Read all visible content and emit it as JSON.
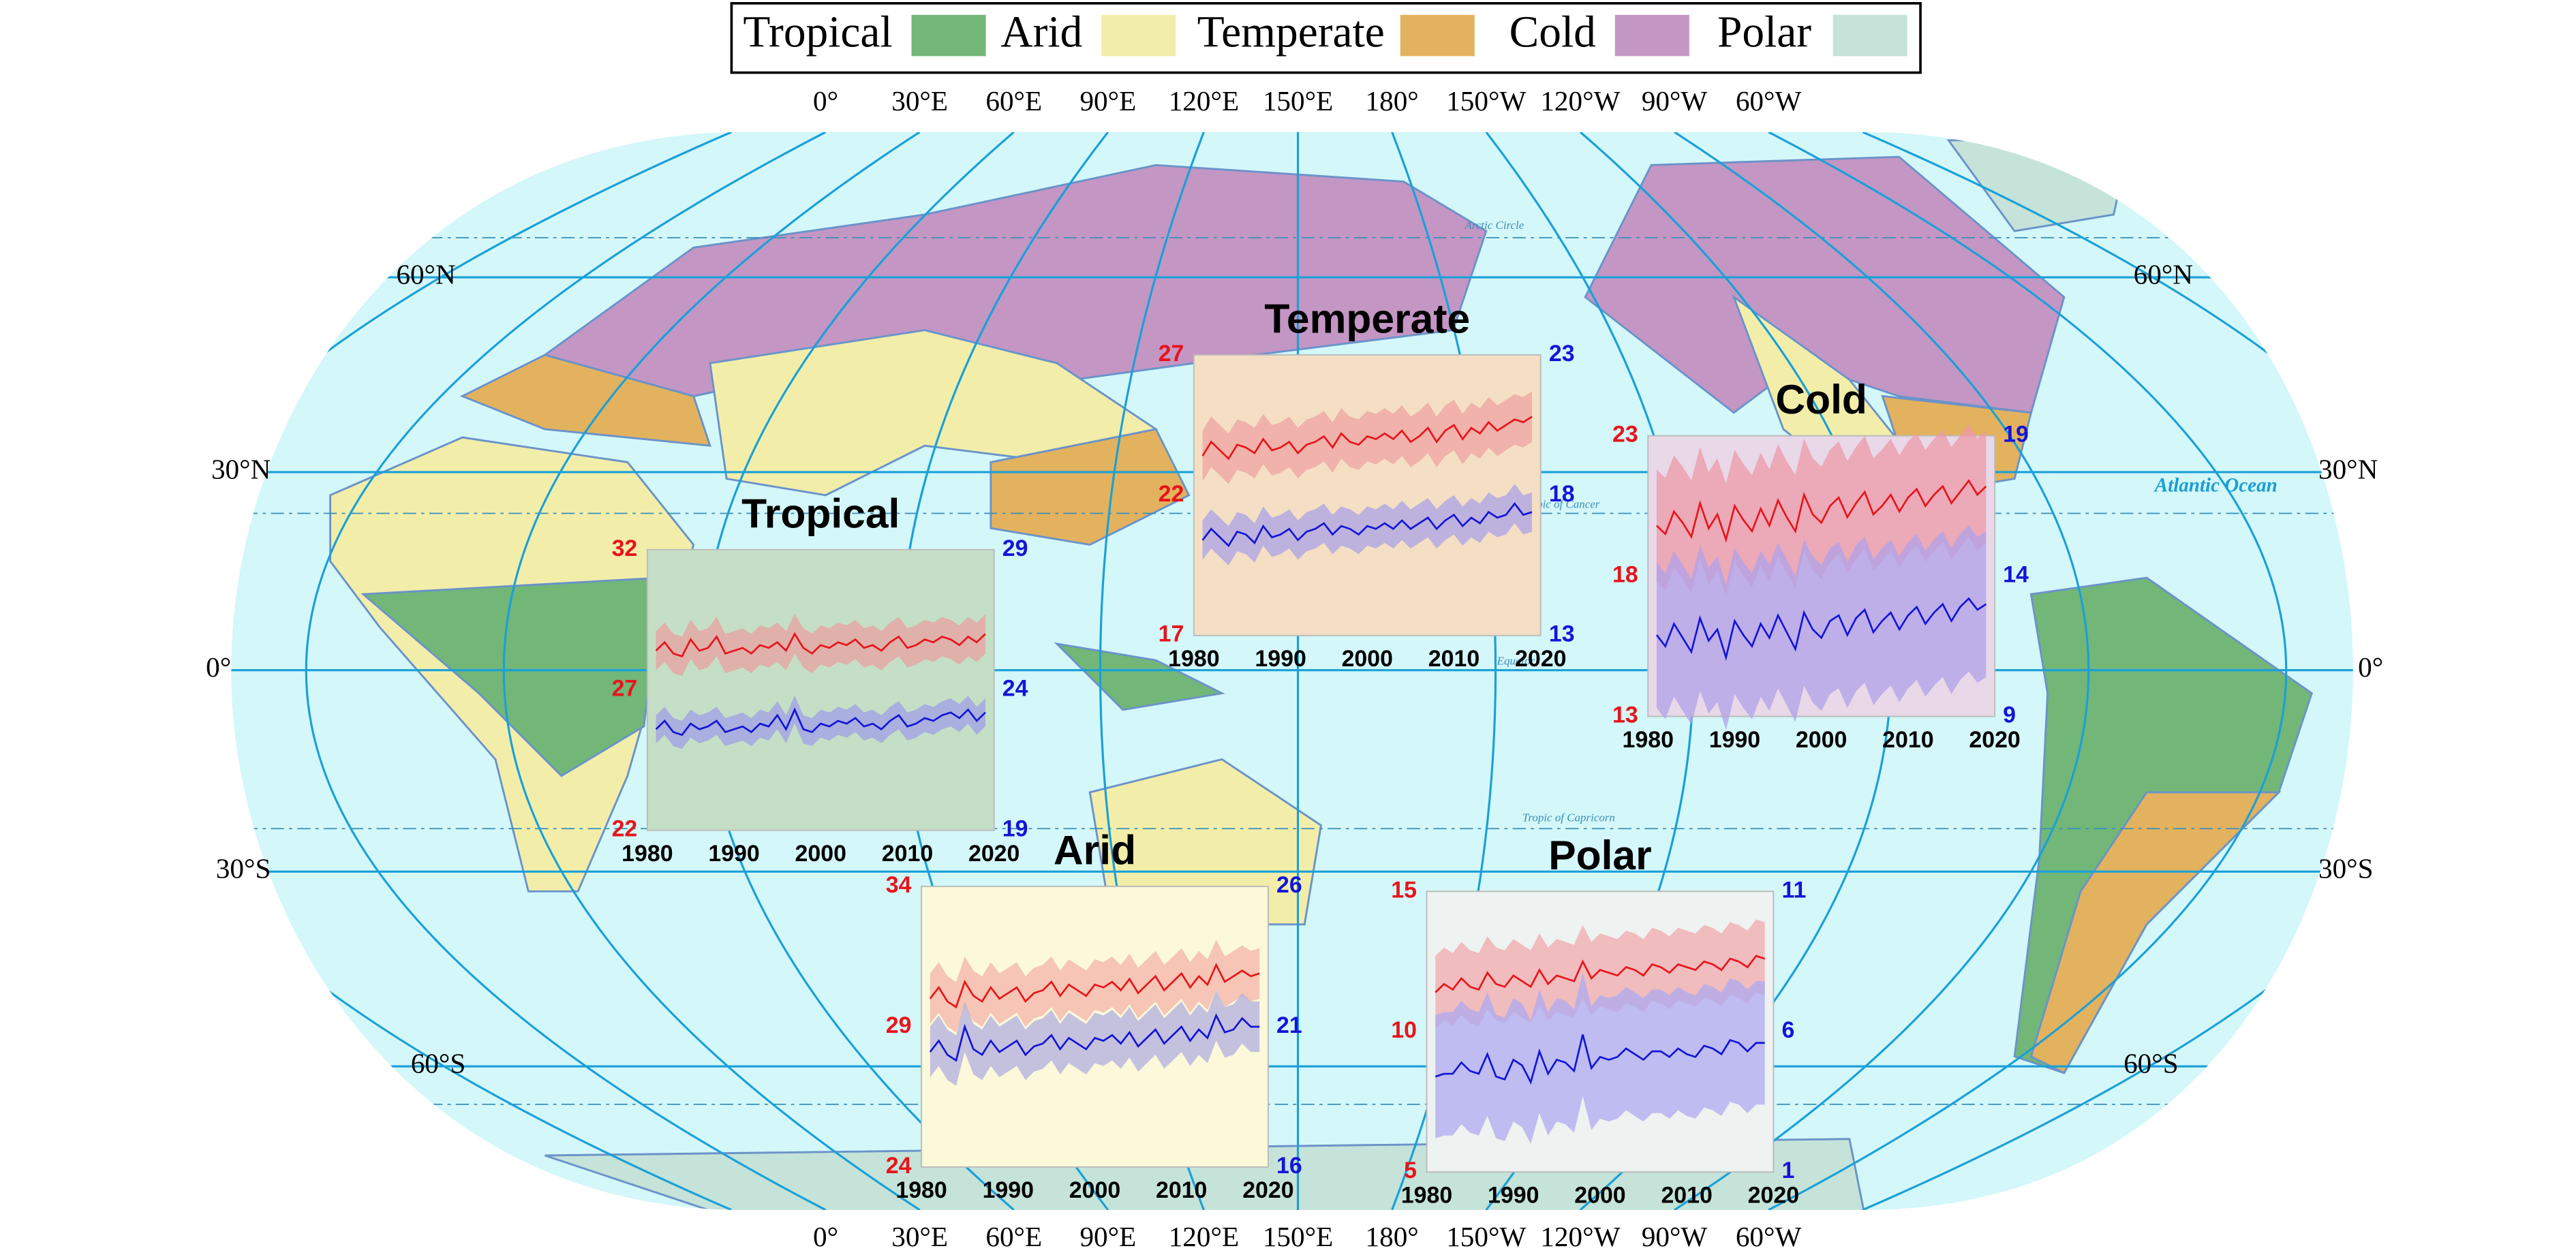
{
  "legend": [
    {
      "label": "Tropical",
      "color": "#72b777"
    },
    {
      "label": "Arid",
      "color": "#f2eeaa"
    },
    {
      "label": "Temperate",
      "color": "#e3b25e"
    },
    {
      "label": "Cold",
      "color": "#c496c4"
    },
    {
      "label": "Polar",
      "color": "#c5e3d9"
    }
  ],
  "map": {
    "lon_labels": [
      "0°",
      "30°E",
      "60°E",
      "90°E",
      "120°E",
      "150°E",
      "180°",
      "150°W",
      "120°W",
      "90°W",
      "60°W"
    ],
    "lat_labels": [
      "60°N",
      "30°N",
      "0°",
      "30°S",
      "60°S"
    ],
    "annotations": [
      "Atlantic Ocean",
      "Arctic Circle",
      "Tropic of Cancer",
      "Equator",
      "Tropic of Capricorn"
    ]
  },
  "chart_data": [
    {
      "type": "line",
      "title": "Tropical",
      "background": "#c5dfc6",
      "x": [
        1981,
        1982,
        1983,
        1984,
        1985,
        1986,
        1987,
        1988,
        1989,
        1990,
        1991,
        1992,
        1993,
        1994,
        1995,
        1996,
        1997,
        1998,
        1999,
        2000,
        2001,
        2002,
        2003,
        2004,
        2005,
        2006,
        2007,
        2008,
        2009,
        2010,
        2011,
        2012,
        2013,
        2014,
        2015,
        2016,
        2017,
        2018,
        2019
      ],
      "xlim": [
        1980,
        2020
      ],
      "xticks": [
        1980,
        1990,
        2000,
        2010,
        2020
      ],
      "ylim": [
        22,
        32
      ],
      "yticks": [
        22,
        27,
        32
      ],
      "y2lim": [
        19,
        29
      ],
      "y2ticks": [
        19,
        24,
        29
      ],
      "series": [
        {
          "color": "#e8141b",
          "band_color": "#e8a0a0",
          "band": 0.7,
          "values": [
            28.4,
            28.7,
            28.3,
            28.2,
            28.8,
            28.4,
            28.5,
            28.9,
            28.3,
            28.4,
            28.5,
            28.3,
            28.6,
            28.5,
            28.7,
            28.4,
            29.0,
            28.5,
            28.3,
            28.6,
            28.5,
            28.7,
            28.6,
            28.8,
            28.5,
            28.6,
            28.4,
            28.7,
            28.9,
            28.5,
            28.6,
            28.8,
            28.7,
            28.9,
            28.8,
            28.6,
            28.9,
            28.7,
            29.0
          ]
        },
        {
          "color": "#1414d8",
          "band_color": "#9f9fe6",
          "band": 0.5,
          "axis": "y2",
          "values": [
            22.6,
            22.9,
            22.5,
            22.4,
            22.8,
            22.6,
            22.7,
            22.9,
            22.5,
            22.6,
            22.7,
            22.5,
            22.8,
            22.7,
            23.1,
            22.6,
            23.3,
            22.6,
            22.5,
            22.8,
            22.7,
            22.9,
            22.8,
            23.0,
            22.7,
            22.8,
            22.6,
            22.9,
            23.1,
            22.7,
            22.8,
            23.0,
            22.9,
            23.1,
            23.2,
            23.0,
            23.3,
            22.9,
            23.2
          ]
        }
      ]
    },
    {
      "type": "line",
      "title": "Temperate",
      "background": "#f5dfc4",
      "x": [
        1981,
        1982,
        1983,
        1984,
        1985,
        1986,
        1987,
        1988,
        1989,
        1990,
        1991,
        1992,
        1993,
        1994,
        1995,
        1996,
        1997,
        1998,
        1999,
        2000,
        2001,
        2002,
        2003,
        2004,
        2005,
        2006,
        2007,
        2008,
        2009,
        2010,
        2011,
        2012,
        2013,
        2014,
        2015,
        2016,
        2017,
        2018,
        2019
      ],
      "xlim": [
        1980,
        2020
      ],
      "xticks": [
        1980,
        1990,
        2000,
        2010,
        2020
      ],
      "ylim": [
        17,
        27
      ],
      "yticks": [
        17,
        22,
        27
      ],
      "y2lim": [
        13,
        23
      ],
      "y2ticks": [
        13,
        18,
        23
      ],
      "series": [
        {
          "color": "#e8141b",
          "band_color": "#eda3a3",
          "band": 0.9,
          "values": [
            23.4,
            23.9,
            23.6,
            23.3,
            23.8,
            23.7,
            23.5,
            24.0,
            23.6,
            23.7,
            23.9,
            23.5,
            23.8,
            23.9,
            24.1,
            23.7,
            24.2,
            23.9,
            23.8,
            24.1,
            24.0,
            24.2,
            24.0,
            24.3,
            23.9,
            24.1,
            24.4,
            23.9,
            24.3,
            24.5,
            24.0,
            24.4,
            24.2,
            24.6,
            24.3,
            24.5,
            24.7,
            24.6,
            24.8
          ]
        },
        {
          "color": "#1414d8",
          "band_color": "#a9a3e6",
          "band": 0.7,
          "axis": "y2",
          "values": [
            16.4,
            16.8,
            16.5,
            16.2,
            16.7,
            16.6,
            16.3,
            16.9,
            16.5,
            16.6,
            16.8,
            16.4,
            16.7,
            16.8,
            17.0,
            16.6,
            16.9,
            16.8,
            16.6,
            16.9,
            16.8,
            17.0,
            16.8,
            17.1,
            16.8,
            17.0,
            17.2,
            16.8,
            17.1,
            17.3,
            16.9,
            17.2,
            17.0,
            17.4,
            17.2,
            17.3,
            17.7,
            17.3,
            17.4
          ]
        }
      ]
    },
    {
      "type": "line",
      "title": "Cold",
      "background": "#e8d8e8",
      "x": [
        1981,
        1982,
        1983,
        1984,
        1985,
        1986,
        1987,
        1988,
        1989,
        1990,
        1991,
        1992,
        1993,
        1994,
        1995,
        1996,
        1997,
        1998,
        1999,
        2000,
        2001,
        2002,
        2003,
        2004,
        2005,
        2006,
        2007,
        2008,
        2009,
        2010,
        2011,
        2012,
        2013,
        2014,
        2015,
        2016,
        2017,
        2018,
        2019
      ],
      "xlim": [
        1980,
        2020
      ],
      "xticks": [
        1980,
        1990,
        2000,
        2010,
        2020
      ],
      "ylim": [
        13,
        23
      ],
      "yticks": [
        13,
        18,
        23
      ],
      "y2lim": [
        9,
        19
      ],
      "y2ticks": [
        9,
        14,
        19
      ],
      "series": [
        {
          "color": "#e8141b",
          "band_color": "#ee9aa8",
          "band": 2.0,
          "values": [
            19.8,
            19.5,
            20.3,
            19.9,
            19.4,
            20.6,
            19.7,
            20.2,
            19.3,
            20.5,
            20.0,
            19.6,
            20.4,
            19.8,
            20.7,
            20.1,
            19.6,
            20.9,
            20.2,
            19.9,
            20.5,
            20.8,
            20.1,
            20.6,
            21.0,
            20.2,
            20.5,
            20.9,
            20.3,
            20.8,
            21.1,
            20.5,
            20.9,
            21.2,
            20.6,
            21.0,
            21.4,
            20.9,
            21.2
          ]
        },
        {
          "color": "#1414d8",
          "band_color": "#b0a2ea",
          "band": 2.6,
          "axis": "y2",
          "values": [
            11.9,
            11.5,
            12.3,
            11.8,
            11.3,
            12.5,
            11.7,
            12.1,
            11.1,
            12.4,
            11.9,
            11.5,
            12.3,
            11.8,
            12.6,
            12.0,
            11.4,
            12.7,
            12.1,
            11.8,
            12.4,
            12.6,
            11.9,
            12.5,
            12.8,
            12.0,
            12.4,
            12.7,
            12.1,
            12.6,
            12.9,
            12.3,
            12.7,
            13.0,
            12.4,
            12.9,
            13.2,
            12.8,
            13.0
          ]
        }
      ]
    },
    {
      "type": "line",
      "title": "Arid",
      "background": "#fbf9da",
      "x": [
        1981,
        1982,
        1983,
        1984,
        1985,
        1986,
        1987,
        1988,
        1989,
        1990,
        1991,
        1992,
        1993,
        1994,
        1995,
        1996,
        1997,
        1998,
        1999,
        2000,
        2001,
        2002,
        2003,
        2004,
        2005,
        2006,
        2007,
        2008,
        2009,
        2010,
        2011,
        2012,
        2013,
        2014,
        2015,
        2016,
        2017,
        2018,
        2019
      ],
      "xlim": [
        1980,
        2020
      ],
      "xticks": [
        1980,
        1990,
        2000,
        2010,
        2020
      ],
      "ylim": [
        24,
        34
      ],
      "yticks": [
        24,
        29,
        34
      ],
      "y2lim": [
        16,
        26
      ],
      "y2ticks": [
        16,
        21,
        26
      ],
      "series": [
        {
          "color": "#e8141b",
          "band_color": "#f4b3a8",
          "band": 0.9,
          "values": [
            30.0,
            30.4,
            29.9,
            29.7,
            30.6,
            30.1,
            29.9,
            30.4,
            30.0,
            30.2,
            30.4,
            29.9,
            30.2,
            30.3,
            30.6,
            30.1,
            30.5,
            30.3,
            30.1,
            30.5,
            30.4,
            30.6,
            30.3,
            30.7,
            30.2,
            30.5,
            30.8,
            30.3,
            30.6,
            30.9,
            30.4,
            30.8,
            30.5,
            31.2,
            30.6,
            30.8,
            31.0,
            30.8,
            30.9
          ]
        },
        {
          "color": "#1414d8",
          "band_color": "#b2aee0",
          "band": 0.9,
          "axis": "y2",
          "values": [
            20.1,
            20.5,
            20.0,
            19.8,
            21.0,
            20.2,
            20.0,
            20.5,
            20.1,
            20.3,
            20.5,
            20.0,
            20.3,
            20.4,
            20.7,
            20.2,
            20.6,
            20.4,
            20.2,
            20.6,
            20.5,
            20.7,
            20.4,
            20.8,
            20.3,
            20.6,
            20.9,
            20.4,
            20.7,
            21.0,
            20.5,
            20.9,
            20.6,
            21.4,
            20.8,
            20.9,
            21.3,
            21.0,
            21.0
          ]
        }
      ]
    },
    {
      "type": "line",
      "title": "Polar",
      "background": "#eef2f0",
      "x": [
        1981,
        1982,
        1983,
        1984,
        1985,
        1986,
        1987,
        1988,
        1989,
        1990,
        1991,
        1992,
        1993,
        1994,
        1995,
        1996,
        1997,
        1998,
        1999,
        2000,
        2001,
        2002,
        2003,
        2004,
        2005,
        2006,
        2007,
        2008,
        2009,
        2010,
        2011,
        2012,
        2013,
        2014,
        2015,
        2016,
        2017,
        2018,
        2019
      ],
      "xlim": [
        1980,
        2020
      ],
      "xticks": [
        1980,
        1990,
        2000,
        2010,
        2020
      ],
      "ylim": [
        5,
        15
      ],
      "yticks": [
        5,
        10,
        15
      ],
      "y2lim": [
        1,
        11
      ],
      "y2ticks": [
        1,
        6,
        11
      ],
      "series": [
        {
          "color": "#e8141b",
          "band_color": "#f0aaae",
          "band": 1.3,
          "values": [
            11.4,
            11.7,
            11.5,
            11.9,
            11.6,
            11.5,
            12.1,
            11.7,
            11.6,
            12.0,
            11.8,
            11.6,
            12.2,
            11.7,
            12.0,
            11.9,
            11.8,
            12.5,
            11.9,
            12.2,
            12.1,
            12.0,
            12.3,
            12.2,
            12.0,
            12.4,
            12.3,
            12.1,
            12.4,
            12.3,
            12.2,
            12.5,
            12.4,
            12.2,
            12.6,
            12.5,
            12.3,
            12.7,
            12.6
          ]
        },
        {
          "color": "#1414d8",
          "band_color": "#aeaaf0",
          "band": 2.2,
          "axis": "y2",
          "values": [
            4.4,
            4.5,
            4.5,
            4.9,
            4.6,
            4.5,
            5.2,
            4.4,
            4.3,
            5.0,
            4.8,
            4.2,
            5.3,
            4.5,
            5.0,
            4.9,
            4.6,
            5.9,
            4.7,
            5.1,
            5.0,
            5.1,
            5.4,
            5.2,
            5.0,
            5.3,
            5.3,
            5.1,
            5.4,
            5.2,
            5.1,
            5.5,
            5.4,
            5.2,
            5.7,
            5.6,
            5.3,
            5.6,
            5.6
          ]
        }
      ]
    }
  ]
}
